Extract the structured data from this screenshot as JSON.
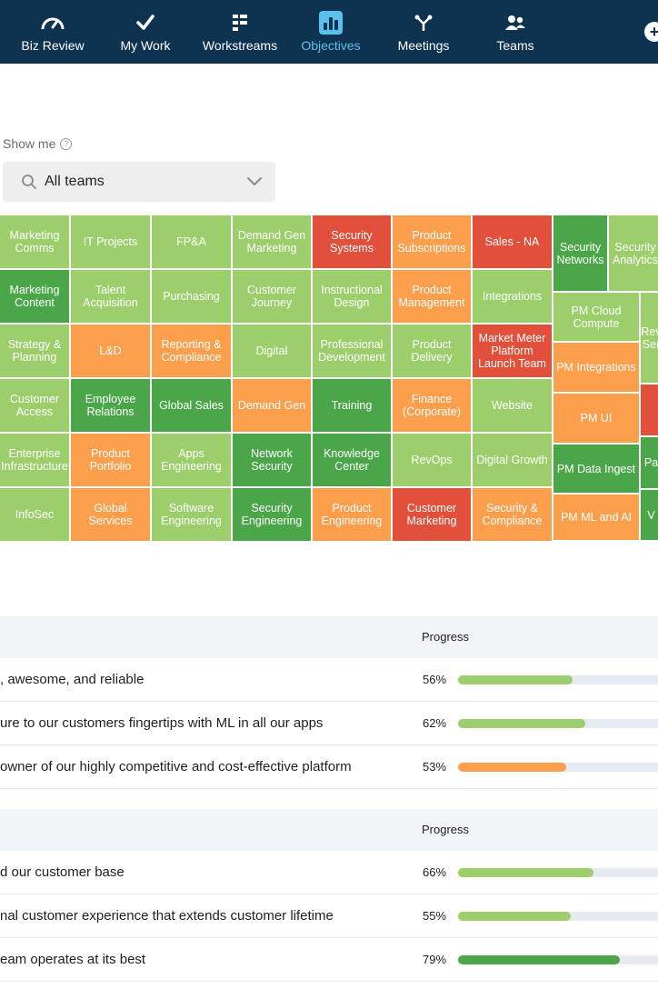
{
  "nav": {
    "items": [
      {
        "label": "Biz Review",
        "icon": "gauge-icon"
      },
      {
        "label": "My Work",
        "icon": "checkmark-icon"
      },
      {
        "label": "Workstreams",
        "icon": "workstreams-icon"
      },
      {
        "label": "Objectives",
        "icon": "bar-chart-icon",
        "active": true
      },
      {
        "label": "Meetings",
        "icon": "meetings-icon"
      },
      {
        "label": "Teams",
        "icon": "teams-icon"
      }
    ],
    "add_icon": "plus-circle-icon"
  },
  "filter": {
    "show_me_label": "Show me",
    "help_icon": "?",
    "selected": "All teams"
  },
  "colors": {
    "nav_bg": "#0e3350",
    "active": "#5bc0eb",
    "light_green": "#9ccf6b",
    "dark_green": "#4ba64a",
    "orange": "#fc9f4d",
    "red": "#e24f3a"
  },
  "treemap": [
    {
      "label": "Marketing\nComms",
      "status": "lg"
    },
    {
      "label": "IT Projects",
      "status": "lg"
    },
    {
      "label": "FP&A",
      "status": "lg"
    },
    {
      "label": "Demand Gen\nMarketing",
      "status": "lg"
    },
    {
      "label": "Security\nSystems",
      "status": "rd"
    },
    {
      "label": "Product\nSubscriptions",
      "status": "or"
    },
    {
      "label": "Sales - NA",
      "status": "rd"
    },
    {
      "label": "Marketing\nContent",
      "status": "dg"
    },
    {
      "label": "Talent\nAcquisition",
      "status": "lg"
    },
    {
      "label": "Purchasing",
      "status": "lg"
    },
    {
      "label": "Customer\nJourney",
      "status": "lg"
    },
    {
      "label": "Instructional\nDesign",
      "status": "lg"
    },
    {
      "label": "Product\nManagement",
      "status": "or"
    },
    {
      "label": "Integrations",
      "status": "lg"
    },
    {
      "label": "Strategy &\nPlanning",
      "status": "lg"
    },
    {
      "label": "L&D",
      "status": "or"
    },
    {
      "label": "Reporting &\nCompliance",
      "status": "or"
    },
    {
      "label": "Digital",
      "status": "lg"
    },
    {
      "label": "Professional\nDevelopment",
      "status": "lg"
    },
    {
      "label": "Product\nDelivery",
      "status": "lg"
    },
    {
      "label": "Market Meter\nPlatform\nLaunch Team",
      "status": "rd"
    },
    {
      "label": "Customer\nAccess",
      "status": "lg"
    },
    {
      "label": "Employee\nRelations",
      "status": "dg"
    },
    {
      "label": "Global Sales",
      "status": "dg"
    },
    {
      "label": "Demand Gen",
      "status": "or"
    },
    {
      "label": "Training",
      "status": "dg"
    },
    {
      "label": "Finance\n(Corporate)",
      "status": "or"
    },
    {
      "label": "Website",
      "status": "lg"
    },
    {
      "label": "Enterprise\nInfrastructure",
      "status": "lg"
    },
    {
      "label": "Product\nPortfolio",
      "status": "or"
    },
    {
      "label": "Apps\nEngineering",
      "status": "lg"
    },
    {
      "label": "Network\nSecurity",
      "status": "dg"
    },
    {
      "label": "Knowledge\nCenter",
      "status": "dg"
    },
    {
      "label": "RevOps",
      "status": "lg"
    },
    {
      "label": "Digital Growth",
      "status": "lg"
    },
    {
      "label": "InfoSec",
      "status": "lg"
    },
    {
      "label": "Global\nServices",
      "status": "or"
    },
    {
      "label": "Software\nEngineering",
      "status": "lg"
    },
    {
      "label": "Security\nEngineering",
      "status": "dg"
    },
    {
      "label": "Product\nEngineering",
      "status": "or"
    },
    {
      "label": "Customer\nMarketing",
      "status": "rd"
    },
    {
      "label": "Security &\nCompliance",
      "status": "or"
    },
    {
      "label": "Security\nNetworks",
      "status": "dg"
    },
    {
      "label": "Security\nAnalytics",
      "status": "lg"
    },
    {
      "label": "PM Cloud\nCompute",
      "status": "lg"
    },
    {
      "label": "Rev\nSer",
      "status": "lg"
    },
    {
      "label": "PM Integrations",
      "status": "or"
    },
    {
      "label": "PM UI",
      "status": "or"
    },
    {
      "label": "",
      "status": "rd"
    },
    {
      "label": "PM Data Ingest",
      "status": "dg"
    },
    {
      "label": "Pa",
      "status": "dg"
    },
    {
      "label": "PM ML and AI",
      "status": "or"
    },
    {
      "label": "V",
      "status": "dg"
    }
  ],
  "sections": [
    {
      "progress_header": "Progress",
      "rows": [
        {
          "text": ", awesome, and reliable",
          "percent": "56%",
          "value": 0.56,
          "color": "#9ccf6b"
        },
        {
          "text": "ure to our customers fingertips with ML in all our apps",
          "percent": "62%",
          "value": 0.62,
          "color": "#9ccf6b"
        },
        {
          "text": "owner of our highly competitive and cost-effective platform",
          "percent": "53%",
          "value": 0.53,
          "color": "#fc9f4d"
        }
      ]
    },
    {
      "progress_header": "Progress",
      "rows": [
        {
          "text": "d our customer base",
          "percent": "66%",
          "value": 0.66,
          "color": "#9ccf6b"
        },
        {
          "text": "nal customer experience that extends customer lifetime",
          "percent": "55%",
          "value": 0.55,
          "color": "#9ccf6b"
        },
        {
          "text": "eam operates at its best",
          "percent": "79%",
          "value": 0.79,
          "color": "#4ba64a"
        }
      ]
    }
  ]
}
